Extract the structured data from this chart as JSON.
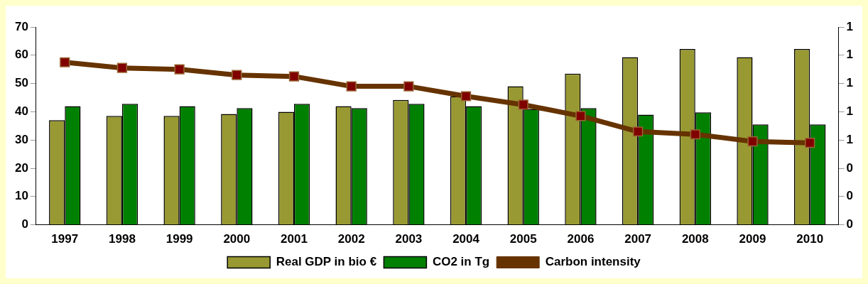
{
  "chart_data": {
    "type": "bar",
    "categories": [
      "1997",
      "1998",
      "1999",
      "2000",
      "2001",
      "2002",
      "2003",
      "2004",
      "2005",
      "2006",
      "2007",
      "2008",
      "2009",
      "2010"
    ],
    "series": [
      {
        "name": "Real GDP in bio €",
        "color": "#999933",
        "values": [
          37,
          38.5,
          38.5,
          39.2,
          40,
          42,
          44.2,
          45.5,
          49,
          53.5,
          59.3,
          62.2,
          59.3,
          62.2
        ]
      },
      {
        "name": "CO2 in Tg",
        "color": "#008000",
        "values": [
          42,
          42.8,
          42,
          41.3,
          42.8,
          41.3,
          42.8,
          42,
          41,
          41.3,
          39,
          39.8,
          35.5,
          35.5
        ]
      },
      {
        "name": "Carbon intensity",
        "type": "line",
        "axis": "y2",
        "color": "#663300",
        "values": [
          1.15,
          1.11,
          1.1,
          1.06,
          1.05,
          0.98,
          0.98,
          0.91,
          0.85,
          0.77,
          0.66,
          0.64,
          0.59,
          0.58
        ]
      }
    ],
    "ylim": [
      0,
      70
    ],
    "yticks": [
      0,
      10,
      20,
      30,
      40,
      50,
      60,
      70
    ],
    "y2lim": [
      0,
      1.4
    ],
    "y2ticks": [
      0,
      {
        "value": 0.2,
        "label": "0"
      },
      {
        "value": 0.4,
        "label": "0"
      },
      {
        "value": 0.6,
        "label": "1"
      },
      {
        "value": 0.8,
        "label": "1"
      },
      {
        "value": 1.0,
        "label": "1"
      },
      {
        "value": 1.2,
        "label": "1"
      },
      {
        "value": 1.4,
        "label": "1"
      }
    ],
    "marker": "square",
    "legend": "bottom",
    "grid": false
  }
}
